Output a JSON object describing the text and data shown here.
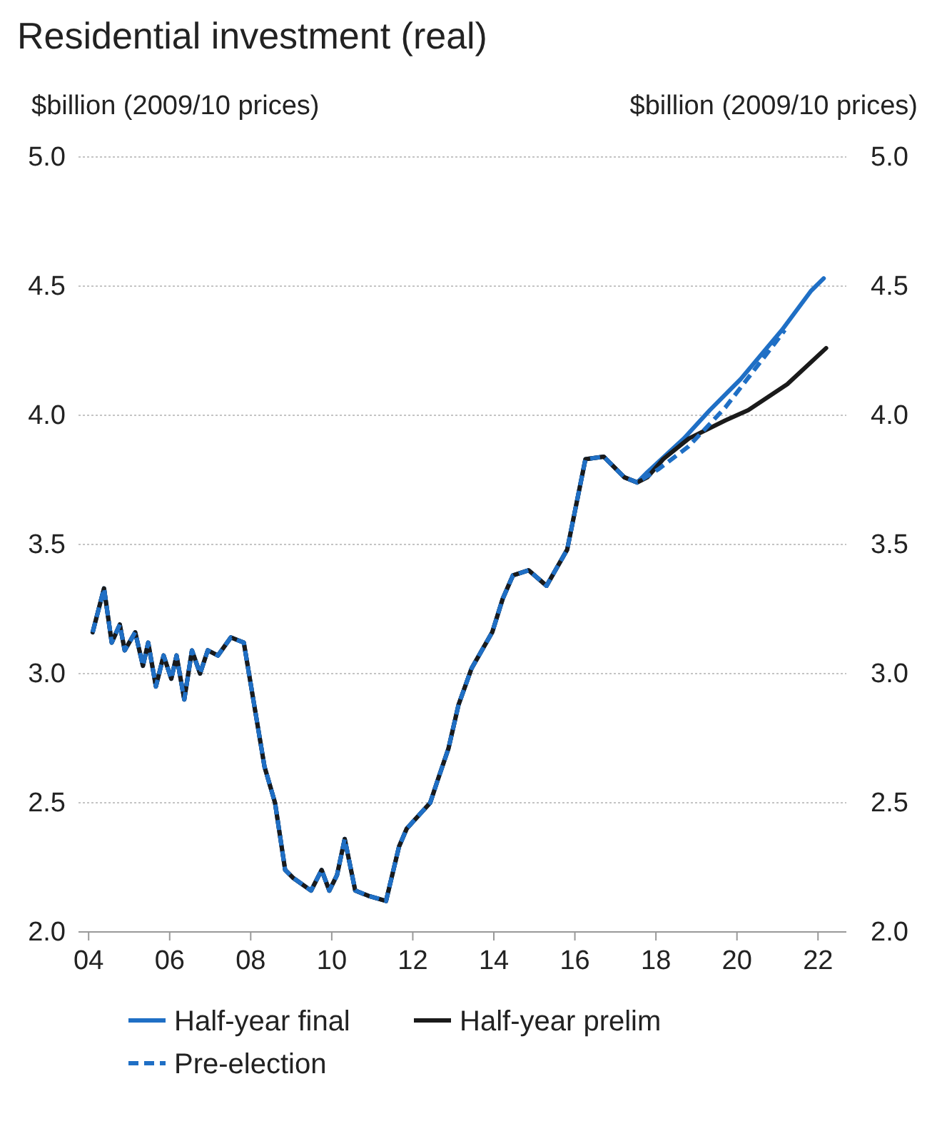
{
  "chart_data": {
    "type": "line",
    "title": "Residential investment (real)",
    "ylabel": "$billion (2009/10 prices)",
    "y2label": "$billion (2009/10 prices)",
    "xlim": [
      2003.75,
      2022.7
    ],
    "xticks": [
      {
        "value": 2004,
        "label": "04"
      },
      {
        "value": 2006,
        "label": "06"
      },
      {
        "value": 2008,
        "label": "08"
      },
      {
        "value": 2010,
        "label": "10"
      },
      {
        "value": 2012,
        "label": "12"
      },
      {
        "value": 2014,
        "label": "14"
      },
      {
        "value": 2016,
        "label": "16"
      },
      {
        "value": 2018,
        "label": "18"
      },
      {
        "value": 2020,
        "label": "20"
      },
      {
        "value": 2022,
        "label": "22"
      }
    ],
    "ylim": [
      2.0,
      5.0
    ],
    "yticks": [
      {
        "value": 2.0,
        "label": "2.0"
      },
      {
        "value": 2.5,
        "label": "2.5"
      },
      {
        "value": 3.0,
        "label": "3.0"
      },
      {
        "value": 3.5,
        "label": "3.5"
      },
      {
        "value": 4.0,
        "label": "4.0"
      },
      {
        "value": 4.5,
        "label": "4.5"
      },
      {
        "value": 5.0,
        "label": "5.0"
      }
    ],
    "y2lim": [
      2.0,
      5.0
    ],
    "y2ticks": [
      {
        "value": 2.0,
        "label": "2.0"
      },
      {
        "value": 2.5,
        "label": "2.5"
      },
      {
        "value": 3.0,
        "label": "3.0"
      },
      {
        "value": 3.5,
        "label": "3.5"
      },
      {
        "value": 4.0,
        "label": "4.0"
      },
      {
        "value": 4.5,
        "label": "4.5"
      },
      {
        "value": 5.0,
        "label": "5.0"
      }
    ],
    "grid": "y",
    "legend": "bottom",
    "series": [
      {
        "name": "Half-year final",
        "color": "#1f6fc5",
        "line_style": "solid",
        "x": [
          2004.1,
          2004.38,
          2004.57,
          2004.77,
          2004.89,
          2005.15,
          2005.34,
          2005.47,
          2005.66,
          2005.85,
          2006.04,
          2006.17,
          2006.36,
          2006.55,
          2006.75,
          2006.94,
          2007.19,
          2007.51,
          2007.83,
          2008.34,
          2008.6,
          2008.85,
          2009.04,
          2009.49,
          2009.75,
          2009.94,
          2010.13,
          2010.32,
          2010.58,
          2010.9,
          2011.34,
          2011.66,
          2011.85,
          2012.43,
          2012.62,
          2012.88,
          2013.13,
          2013.45,
          2013.96,
          2014.22,
          2014.47,
          2014.86,
          2015.3,
          2015.81,
          2016.26,
          2016.71,
          2017.22,
          2017.54,
          2017.79,
          2018.69,
          2019.33,
          2020.09,
          2021.11,
          2021.82,
          2022.14
        ],
        "values": [
          3.16,
          3.33,
          3.12,
          3.19,
          3.09,
          3.16,
          3.03,
          3.12,
          2.95,
          3.07,
          2.98,
          3.07,
          2.9,
          3.09,
          3.0,
          3.09,
          3.07,
          3.14,
          3.12,
          2.64,
          2.5,
          2.24,
          2.21,
          2.16,
          2.24,
          2.16,
          2.22,
          2.36,
          2.16,
          2.14,
          2.12,
          2.33,
          2.4,
          2.5,
          2.59,
          2.71,
          2.88,
          3.02,
          3.16,
          3.29,
          3.38,
          3.4,
          3.34,
          3.48,
          3.83,
          3.84,
          3.76,
          3.74,
          3.78,
          3.91,
          4.02,
          4.14,
          4.33,
          4.48,
          4.53
        ]
      },
      {
        "name": "Half-year prelim",
        "color": "#1a1a1a",
        "line_style": "solid",
        "x": [
          2004.1,
          2004.38,
          2004.57,
          2004.77,
          2004.89,
          2005.15,
          2005.34,
          2005.47,
          2005.66,
          2005.85,
          2006.04,
          2006.17,
          2006.36,
          2006.55,
          2006.75,
          2006.94,
          2007.19,
          2007.51,
          2007.83,
          2008.34,
          2008.6,
          2008.85,
          2009.04,
          2009.49,
          2009.75,
          2009.94,
          2010.13,
          2010.32,
          2010.58,
          2010.9,
          2011.34,
          2011.66,
          2011.85,
          2012.43,
          2012.62,
          2012.88,
          2013.13,
          2013.45,
          2013.96,
          2014.22,
          2014.47,
          2014.86,
          2015.3,
          2015.81,
          2016.26,
          2016.71,
          2017.22,
          2017.54,
          2017.79,
          2018.18,
          2018.81,
          2019.71,
          2020.28,
          2021.24,
          2022.2
        ],
        "values": [
          3.16,
          3.33,
          3.12,
          3.19,
          3.09,
          3.16,
          3.03,
          3.12,
          2.95,
          3.07,
          2.98,
          3.07,
          2.9,
          3.09,
          3.0,
          3.09,
          3.07,
          3.14,
          3.12,
          2.64,
          2.5,
          2.24,
          2.21,
          2.16,
          2.24,
          2.16,
          2.22,
          2.36,
          2.16,
          2.14,
          2.12,
          2.33,
          2.4,
          2.5,
          2.59,
          2.71,
          2.88,
          3.02,
          3.16,
          3.29,
          3.38,
          3.4,
          3.34,
          3.48,
          3.83,
          3.84,
          3.76,
          3.74,
          3.76,
          3.83,
          3.91,
          3.98,
          4.02,
          4.12,
          4.26
        ]
      },
      {
        "name": "Pre-election",
        "color": "#1f6fc5",
        "line_style": "dashed",
        "x": [
          2004.1,
          2004.38,
          2004.57,
          2004.77,
          2004.89,
          2005.15,
          2005.34,
          2005.47,
          2005.66,
          2005.85,
          2006.04,
          2006.17,
          2006.36,
          2006.55,
          2006.75,
          2006.94,
          2007.19,
          2007.51,
          2007.83,
          2008.34,
          2008.6,
          2008.85,
          2009.04,
          2009.49,
          2009.75,
          2009.94,
          2010.13,
          2010.32,
          2010.58,
          2010.9,
          2011.34,
          2011.66,
          2011.85,
          2012.43,
          2012.62,
          2012.88,
          2013.13,
          2013.45,
          2013.96,
          2014.22,
          2014.47,
          2014.86,
          2015.3,
          2015.81,
          2016.26,
          2016.71,
          2017.22,
          2017.54,
          2018.05,
          2018.81,
          2019.71,
          2020.35,
          2020.99,
          2021.18
        ],
        "values": [
          3.16,
          3.33,
          3.12,
          3.19,
          3.09,
          3.16,
          3.03,
          3.12,
          2.95,
          3.07,
          2.98,
          3.07,
          2.9,
          3.09,
          3.0,
          3.09,
          3.07,
          3.14,
          3.12,
          2.64,
          2.5,
          2.24,
          2.21,
          2.16,
          2.24,
          2.16,
          2.22,
          2.36,
          2.16,
          2.14,
          2.12,
          2.33,
          2.4,
          2.5,
          2.59,
          2.71,
          2.88,
          3.02,
          3.16,
          3.29,
          3.38,
          3.4,
          3.34,
          3.48,
          3.83,
          3.84,
          3.76,
          3.74,
          3.79,
          3.88,
          4.03,
          4.16,
          4.29,
          4.33
        ]
      }
    ]
  }
}
